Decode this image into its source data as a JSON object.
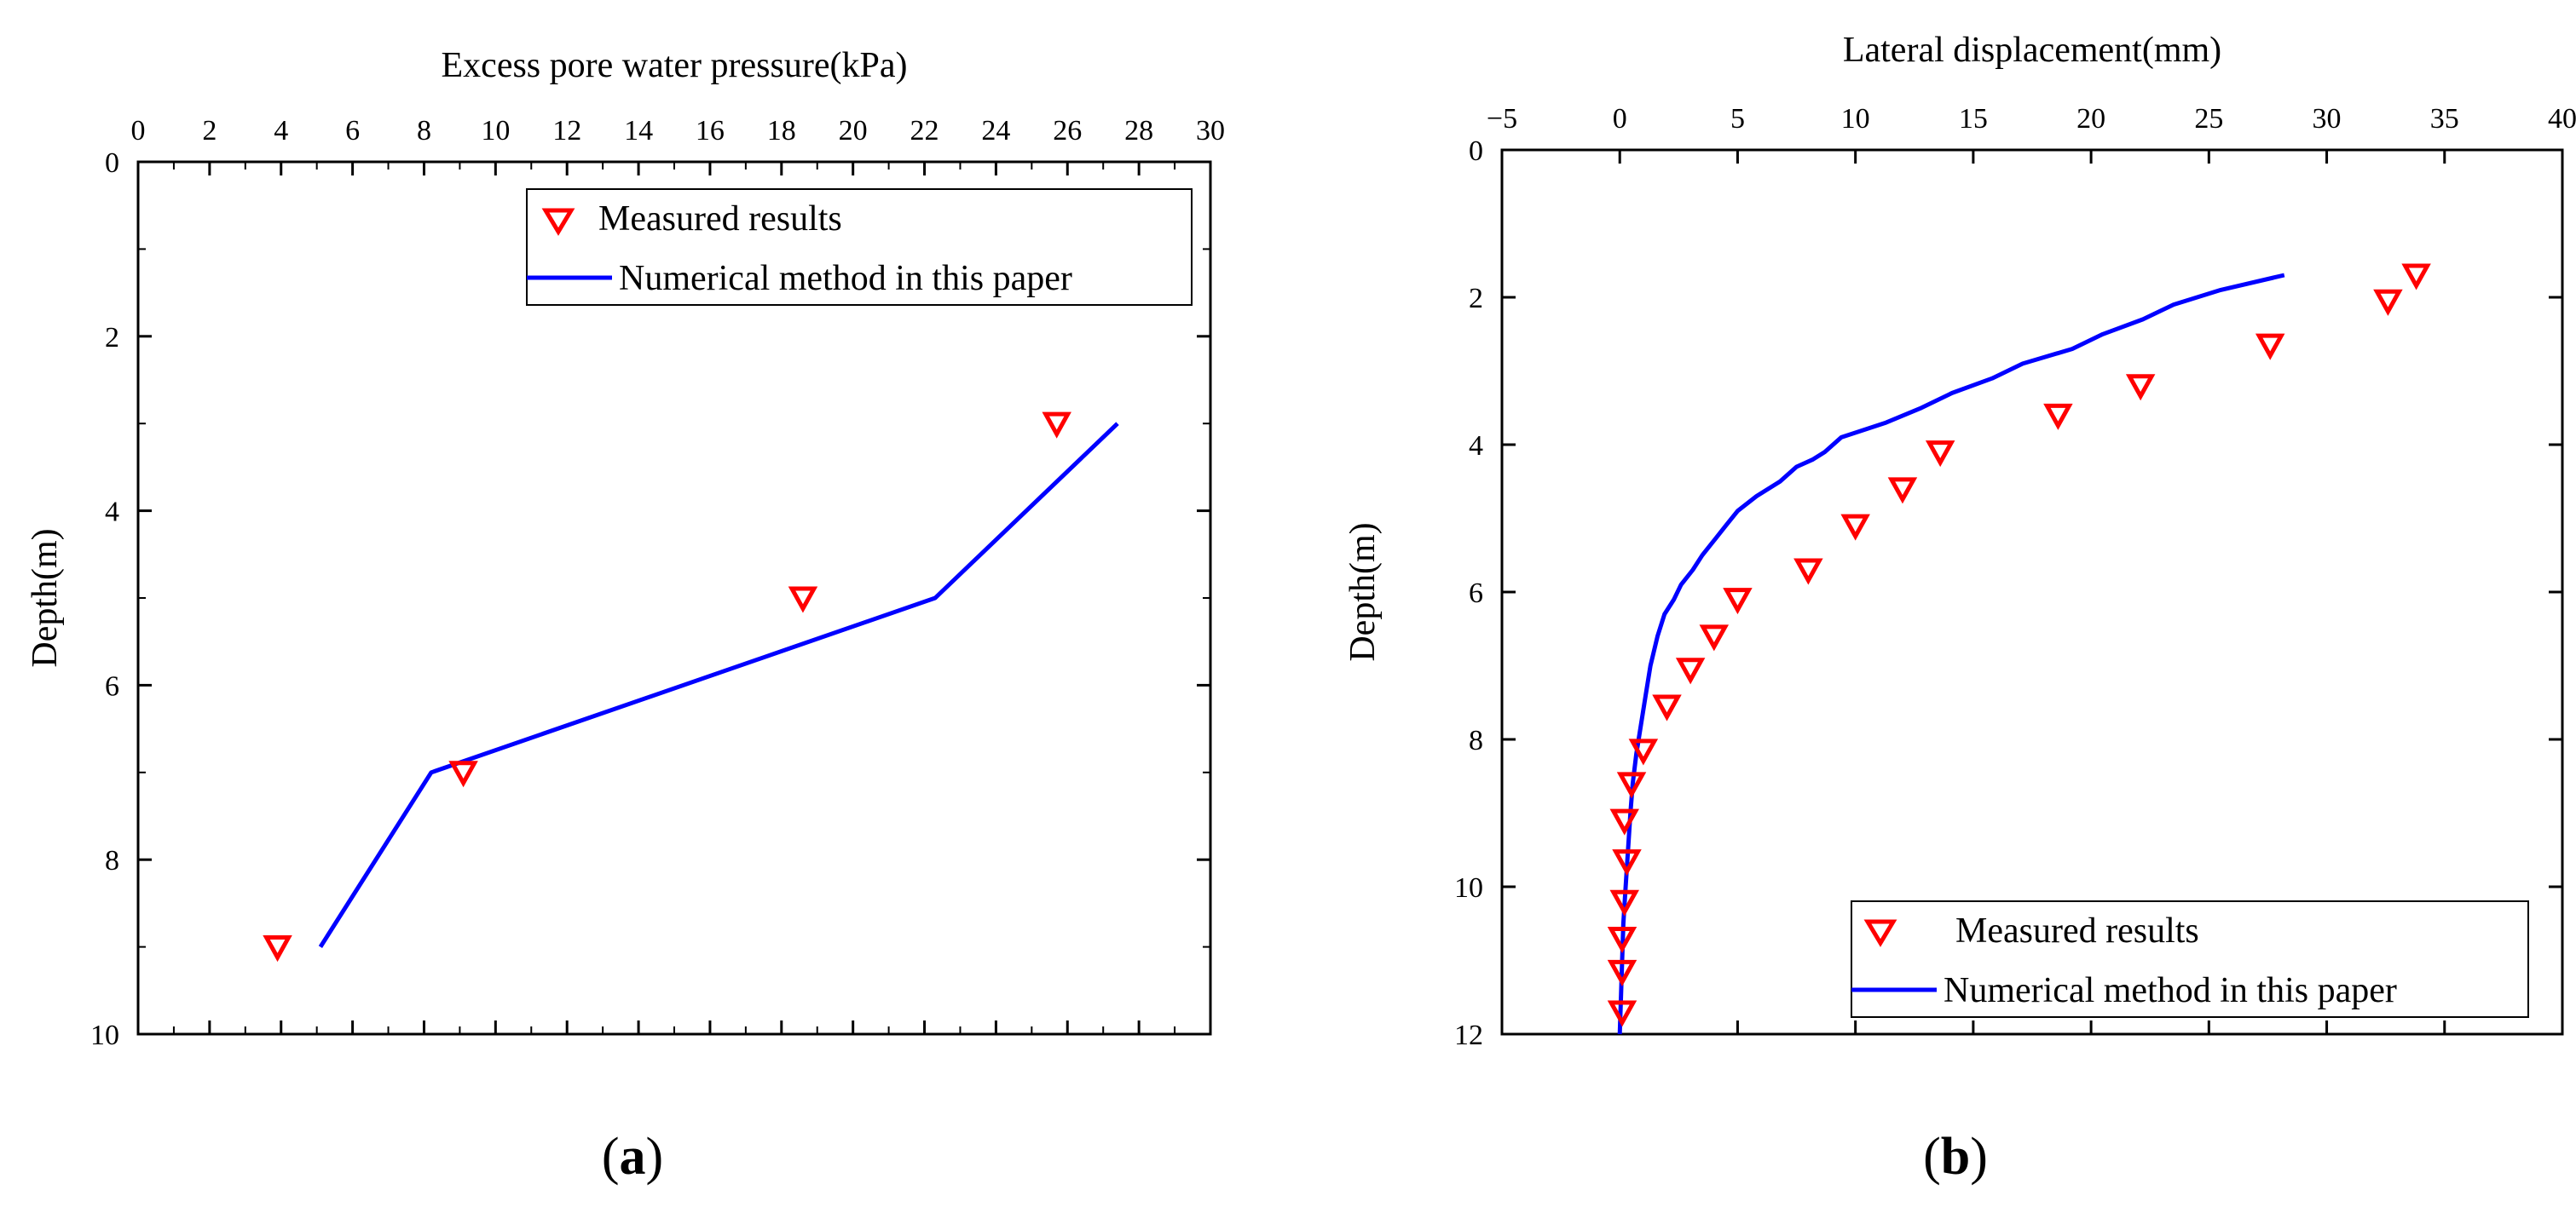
{
  "chart_data": [
    {
      "id": "a",
      "type": "scatter+line",
      "panel_label": "a",
      "panel_label_open": "(",
      "panel_label_close": ")",
      "xlabel": "Excess pore water pressure(kPa)",
      "ylabel": "Depth(m)",
      "xlim": [
        0,
        30
      ],
      "ylim": [
        10,
        0
      ],
      "xticks": [
        0,
        2,
        4,
        6,
        8,
        10,
        12,
        14,
        16,
        18,
        20,
        22,
        24,
        26,
        28,
        30
      ],
      "xtick_labels": [
        "0",
        "2",
        "4",
        "6",
        "8",
        "10",
        "12",
        "14",
        "16",
        "18",
        "20",
        "22",
        "24",
        "26",
        "28",
        "30"
      ],
      "yticks": [
        0,
        2,
        4,
        6,
        8,
        10
      ],
      "ytick_labels": [
        "0",
        "2",
        "4",
        "6",
        "8",
        "10"
      ],
      "legend_position": "top-right",
      "series": [
        {
          "name": "Measured results",
          "kind": "marker",
          "marker": "triangle-down",
          "color": "#ff0000",
          "points": [
            [
              3.9,
              9.0
            ],
            [
              9.1,
              7.0
            ],
            [
              18.6,
              5.0
            ],
            [
              25.7,
              3.0
            ]
          ]
        },
        {
          "name": "Numerical method in this paper",
          "kind": "line",
          "color": "#0000ff",
          "points": [
            [
              5.1,
              9.0
            ],
            [
              8.2,
              7.0
            ],
            [
              22.3,
              5.0
            ],
            [
              27.4,
              3.0
            ]
          ]
        }
      ]
    },
    {
      "id": "b",
      "type": "scatter+line",
      "panel_label": "b",
      "panel_label_open": "(",
      "panel_label_close": ")",
      "xlabel": "Lateral displacement(mm)",
      "ylabel": "Depth(m)",
      "xlim": [
        -5,
        40
      ],
      "ylim": [
        12,
        0
      ],
      "xticks": [
        -5,
        0,
        5,
        10,
        15,
        20,
        25,
        30,
        35,
        40
      ],
      "xtick_labels": [
        "−5",
        "0",
        "5",
        "10",
        "15",
        "20",
        "25",
        "30",
        "35",
        "40"
      ],
      "yticks": [
        0,
        2,
        4,
        6,
        8,
        10,
        12
      ],
      "ytick_labels": [
        "0",
        "2",
        "4",
        "6",
        "8",
        "10",
        "12"
      ],
      "legend_position": "bottom-right",
      "series": [
        {
          "name": "Measured results",
          "kind": "marker",
          "marker": "triangle-down",
          "color": "#ff0000",
          "points": [
            [
              33.8,
              1.7
            ],
            [
              32.6,
              2.05
            ],
            [
              27.6,
              2.65
            ],
            [
              22.1,
              3.2
            ],
            [
              18.6,
              3.6
            ],
            [
              13.6,
              4.1
            ],
            [
              12.0,
              4.6
            ],
            [
              10.0,
              5.1
            ],
            [
              8.0,
              5.7
            ],
            [
              5.0,
              6.1
            ],
            [
              4.0,
              6.6
            ],
            [
              3.0,
              7.05
            ],
            [
              2.0,
              7.55
            ],
            [
              1.0,
              8.15
            ],
            [
              0.5,
              8.6
            ],
            [
              0.2,
              9.1
            ],
            [
              0.3,
              9.65
            ],
            [
              0.2,
              10.2
            ],
            [
              0.1,
              10.7
            ],
            [
              0.1,
              11.15
            ],
            [
              0.1,
              11.7
            ]
          ]
        },
        {
          "name": "Numerical method in this paper",
          "kind": "line",
          "color": "#0000ff",
          "points": [
            [
              28.2,
              1.7
            ],
            [
              25.5,
              1.9
            ],
            [
              23.5,
              2.1
            ],
            [
              22.2,
              2.3
            ],
            [
              20.5,
              2.5
            ],
            [
              19.2,
              2.7
            ],
            [
              17.1,
              2.9
            ],
            [
              15.8,
              3.1
            ],
            [
              14.1,
              3.3
            ],
            [
              12.8,
              3.5
            ],
            [
              11.3,
              3.7
            ],
            [
              9.4,
              3.9
            ],
            [
              8.7,
              4.1
            ],
            [
              8.2,
              4.2
            ],
            [
              7.5,
              4.3
            ],
            [
              6.8,
              4.5
            ],
            [
              5.8,
              4.7
            ],
            [
              5.0,
              4.9
            ],
            [
              4.5,
              5.1
            ],
            [
              4.0,
              5.3
            ],
            [
              3.5,
              5.5
            ],
            [
              3.1,
              5.7
            ],
            [
              2.6,
              5.9
            ],
            [
              2.3,
              6.1
            ],
            [
              1.9,
              6.3
            ],
            [
              1.6,
              6.6
            ],
            [
              1.3,
              7.0
            ],
            [
              1.1,
              7.4
            ],
            [
              0.9,
              7.8
            ],
            [
              0.7,
              8.2
            ],
            [
              0.55,
              8.6
            ],
            [
              0.45,
              9.0
            ],
            [
              0.35,
              9.5
            ],
            [
              0.25,
              10.0
            ],
            [
              0.15,
              10.5
            ],
            [
              0.1,
              11.0
            ],
            [
              0.05,
              11.5
            ],
            [
              0.0,
              12.0
            ]
          ]
        }
      ]
    }
  ]
}
